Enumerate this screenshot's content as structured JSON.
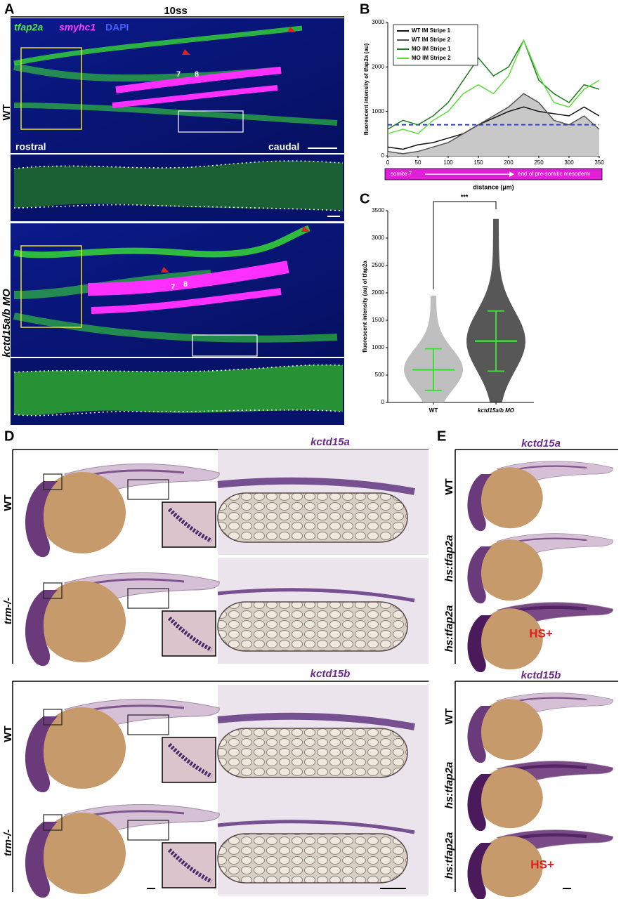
{
  "panel_labels": [
    "A",
    "B",
    "C",
    "D",
    "E"
  ],
  "panel_a": {
    "stage": "10ss",
    "stains": [
      "tfap2a",
      "smyhc1",
      "DAPI"
    ],
    "rows": [
      "WT",
      "kctd15a/b MO"
    ],
    "orientation": [
      "rostral",
      "caudal"
    ],
    "somites": [
      "7",
      "8"
    ]
  },
  "panel_d": {
    "genes": [
      "kctd15a",
      "kctd15b"
    ],
    "rows": [
      "WT",
      "trm-/-"
    ]
  },
  "panel_e": {
    "genes": [
      "kctd15a",
      "kctd15b"
    ],
    "rows": [
      "WT",
      "hs:tfap2a"
    ],
    "heat_shock": "HS+"
  },
  "chart_data": [
    {
      "type": "line",
      "x_label": "distance (µm)",
      "y_label": "fluorescent intensity of tfap2a (au)",
      "x": [
        0,
        25,
        50,
        75,
        100,
        125,
        150,
        175,
        200,
        225,
        250,
        275,
        300,
        325,
        350
      ],
      "series": [
        {
          "name": "WT IM Stripe 1",
          "color": "#111111",
          "values": [
            200,
            150,
            250,
            300,
            400,
            500,
            700,
            850,
            1000,
            1100,
            1000,
            950,
            900,
            1100,
            900
          ]
        },
        {
          "name": "WT IM Stripe 2",
          "color": "#555555",
          "fill": "#c8c8c8",
          "values": [
            100,
            50,
            100,
            200,
            300,
            500,
            700,
            900,
            1100,
            1400,
            1200,
            800,
            700,
            900,
            600
          ]
        },
        {
          "name": "MO IM Stripe 1",
          "color": "#1e7d1e",
          "values": [
            600,
            800,
            700,
            900,
            1200,
            1700,
            2200,
            1800,
            2000,
            2600,
            1700,
            1400,
            1200,
            1600,
            1500
          ]
        },
        {
          "name": "MO IM Stripe 2",
          "color": "#5edc3c",
          "values": [
            500,
            600,
            500,
            800,
            1000,
            1400,
            1600,
            1400,
            1800,
            2600,
            1800,
            1200,
            1100,
            1500,
            1700
          ]
        }
      ],
      "xlim": [
        0,
        350
      ],
      "xticks": [
        0,
        50,
        100,
        150,
        200,
        250,
        300,
        350
      ],
      "ylim": [
        0,
        3000
      ],
      "yticks": [
        0,
        1000,
        2000,
        3000
      ],
      "threshold": {
        "value": 700,
        "color": "#2b3bd6"
      },
      "axis_bar": {
        "start": "somite 7",
        "end": "end of pre-somitic mesoderm",
        "color": "#e020d8"
      },
      "legend": "upper left"
    },
    {
      "type": "dot",
      "y_label": "fluorescent intensity (au) of tfap2a",
      "categories": [
        "WT",
        "kctd15a/b MO"
      ],
      "values": [
        600,
        1120
      ],
      "errors": [
        380,
        550
      ],
      "ranges": [
        [
          0,
          1950
        ],
        [
          0,
          3350
        ]
      ],
      "colors": [
        "#b4b4b4",
        "#3a3a3a"
      ],
      "summary_color": "#3ddc3a",
      "ylim": [
        0,
        3500
      ],
      "yticks": [
        0,
        500,
        1000,
        1500,
        2000,
        2500,
        3000,
        3500
      ],
      "significance": "***"
    }
  ]
}
